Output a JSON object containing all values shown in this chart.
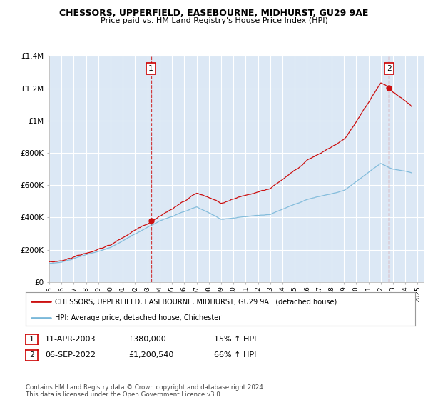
{
  "title": "CHESSORS, UPPERFIELD, EASEBOURNE, MIDHURST, GU29 9AE",
  "subtitle": "Price paid vs. HM Land Registry's House Price Index (HPI)",
  "ylim": [
    0,
    1400000
  ],
  "yticks": [
    0,
    200000,
    400000,
    600000,
    800000,
    1000000,
    1200000,
    1400000
  ],
  "ytick_labels": [
    "£0",
    "£200K",
    "£400K",
    "£600K",
    "£800K",
    "£1M",
    "£1.2M",
    "£1.4M"
  ],
  "xlim_start": 1995.0,
  "xlim_end": 2025.5,
  "xticks": [
    1995,
    1996,
    1997,
    1998,
    1999,
    2000,
    2001,
    2002,
    2003,
    2004,
    2005,
    2006,
    2007,
    2008,
    2009,
    2010,
    2011,
    2012,
    2013,
    2014,
    2015,
    2016,
    2017,
    2018,
    2019,
    2020,
    2021,
    2022,
    2023,
    2024,
    2025
  ],
  "sale1_x": 2003.28,
  "sale1_y": 380000,
  "sale2_x": 2022.68,
  "sale2_y": 1200540,
  "hpi_color": "#7ab8d9",
  "price_color": "#cc1111",
  "bg_plot": "#dce8f5",
  "grid_color": "#ffffff",
  "legend_house_label": "CHESSORS, UPPERFIELD, EASEBOURNE, MIDHURST, GU29 9AE (detached house)",
  "legend_hpi_label": "HPI: Average price, detached house, Chichester",
  "table_row1": [
    "1",
    "11-APR-2003",
    "£380,000",
    "15% ↑ HPI"
  ],
  "table_row2": [
    "2",
    "06-SEP-2022",
    "£1,200,540",
    "66% ↑ HPI"
  ],
  "footnote": "Contains HM Land Registry data © Crown copyright and database right 2024.\nThis data is licensed under the Open Government Licence v3.0."
}
